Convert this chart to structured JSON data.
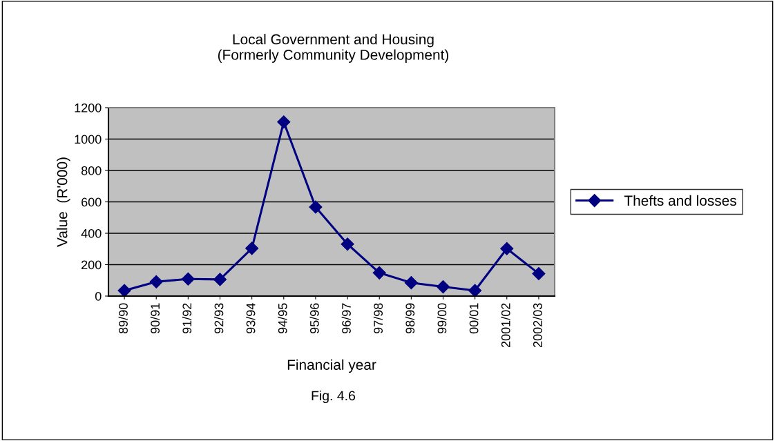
{
  "chart_data": {
    "type": "line",
    "title": "Local Government and Housing\n(Formerly Community Development)",
    "xlabel": "Financial year",
    "ylabel": "Value  (R'000)",
    "annotations": [
      "Fig. 4.6"
    ],
    "categories": [
      "89/90",
      "90/91",
      "91/92",
      "92/93",
      "93/94",
      "94/95",
      "95/96",
      "96/97",
      "97/98",
      "98/99",
      "99/00",
      "00/01",
      "2001/02",
      "2002/03"
    ],
    "series": [
      {
        "name": "Thefts and losses",
        "color": "#000080",
        "values": [
          35,
          91,
          109,
          106,
          304,
          1109,
          567,
          331,
          148,
          85,
          59,
          35,
          302,
          143
        ]
      }
    ],
    "ylim": [
      0,
      1200
    ],
    "yticks": [
      0,
      200,
      400,
      600,
      800,
      1000,
      1200
    ],
    "grid": "y",
    "legend": "right",
    "marker": "diamond",
    "line_style": "solid"
  }
}
